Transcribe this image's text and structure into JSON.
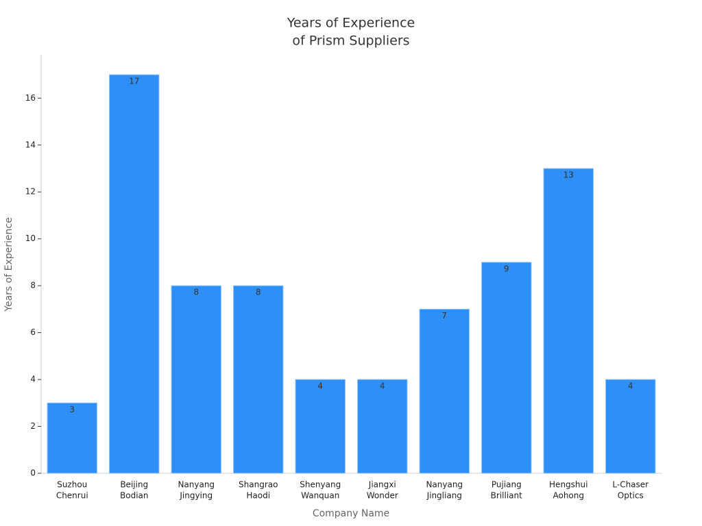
{
  "chart_data": {
    "type": "bar",
    "title": [
      "Years of Experience",
      "of Prism Suppliers"
    ],
    "x_label": "Company Name",
    "y_label": "Years of Experience",
    "categories": [
      [
        "Suzhou",
        "Chenrui"
      ],
      [
        "Beijing",
        "Bodian"
      ],
      [
        "Nanyang",
        "Jingying"
      ],
      [
        "Shangrao",
        "Haodi"
      ],
      [
        "Shenyang",
        "Wanquan"
      ],
      [
        "Jiangxi",
        "Wonder"
      ],
      [
        "Nanyang",
        "Jingliang"
      ],
      [
        "Pujiang",
        "Brilliant"
      ],
      [
        "Hengshui",
        "Aohong"
      ],
      [
        "L-Chaser",
        "Optics"
      ]
    ],
    "values": [
      3,
      17,
      8,
      8,
      4,
      4,
      7,
      9,
      13,
      4
    ],
    "color": "#2e90f7",
    "ylim": [
      0,
      17.85
    ],
    "yticks": [
      0,
      2,
      4,
      6,
      8,
      10,
      12,
      14,
      16
    ],
    "grid": false
  }
}
